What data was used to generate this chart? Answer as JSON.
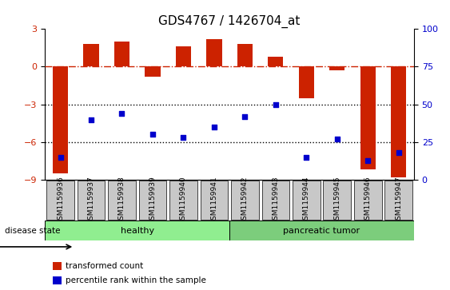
{
  "title": "GDS4767 / 1426704_at",
  "samples": [
    "GSM1159936",
    "GSM1159937",
    "GSM1159938",
    "GSM1159939",
    "GSM1159940",
    "GSM1159941",
    "GSM1159942",
    "GSM1159943",
    "GSM1159944",
    "GSM1159945",
    "GSM1159946",
    "GSM1159947"
  ],
  "bar_values": [
    -8.5,
    1.8,
    2.0,
    -0.8,
    1.6,
    2.2,
    1.8,
    0.8,
    -2.5,
    -0.3,
    -8.2,
    -8.8
  ],
  "percentile_values": [
    15,
    40,
    44,
    30,
    28,
    35,
    42,
    50,
    15,
    27,
    13,
    18
  ],
  "ylim_left": [
    -9,
    3
  ],
  "ylim_right": [
    0,
    100
  ],
  "yticks_left": [
    -9,
    -6,
    -3,
    0,
    3
  ],
  "yticks_right": [
    0,
    25,
    50,
    75,
    100
  ],
  "bar_color": "#CC2200",
  "dot_color": "#0000CC",
  "dashed_line_color": "#CC2200",
  "dotted_line_color": "#000000",
  "healthy_count": 6,
  "tumor_count": 6,
  "healthy_color": "#90EE90",
  "tumor_color": "#7CCD7C",
  "tick_bg_color": "#C8C8C8",
  "bar_width": 0.5
}
